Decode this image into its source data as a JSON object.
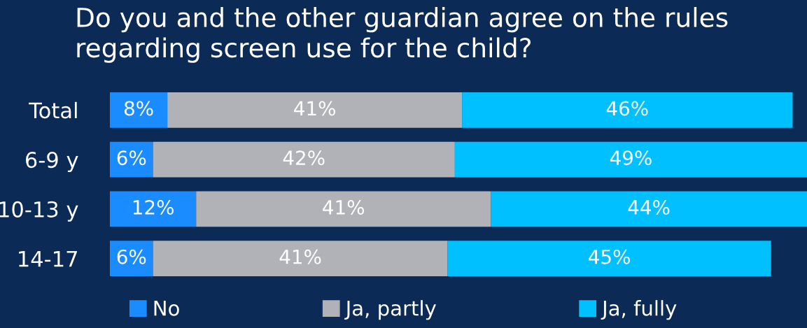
{
  "chart_data": {
    "type": "bar",
    "orientation": "horizontal",
    "stacked": true,
    "legend": "bottom",
    "grid": false,
    "title": "Do you and the other guardian agree on the rules\nregarding screen use for the child?",
    "categories": [
      "Total",
      "6-9 y",
      "10-13 y",
      "14-17"
    ],
    "series": [
      {
        "name": "No",
        "color": "#1a8cff",
        "values": [
          8,
          6,
          12,
          6
        ],
        "value_labels": [
          "8%",
          "6%",
          "12%",
          "6%"
        ]
      },
      {
        "name": "Ja, partly",
        "color": "#b1b2b7",
        "values": [
          41,
          42,
          41,
          41
        ],
        "value_labels": [
          "41%",
          "42%",
          "41%",
          "41%"
        ]
      },
      {
        "name": "Ja, fully",
        "color": "#00c0ff",
        "values": [
          46,
          49,
          44,
          45
        ],
        "value_labels": [
          "46%",
          "49%",
          "44%",
          "45%"
        ]
      }
    ]
  }
}
